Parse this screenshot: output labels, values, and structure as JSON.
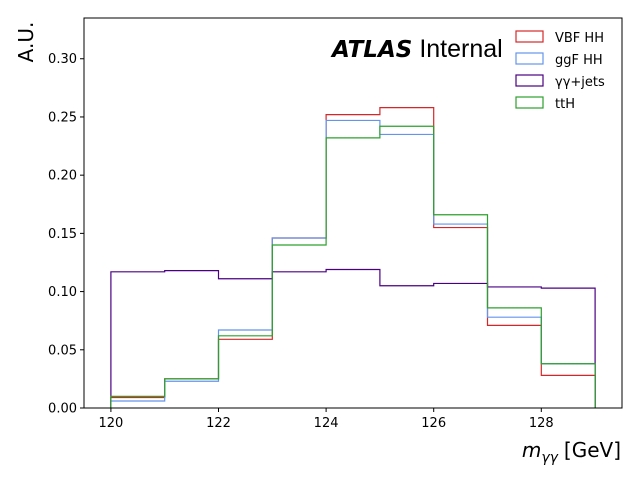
{
  "chart_data": {
    "type": "histogram-step",
    "bin_edges": [
      120,
      121,
      122,
      123,
      124,
      125,
      126,
      127,
      128,
      129
    ],
    "series": [
      {
        "name": "VBF HH",
        "color": "#d62728",
        "values": [
          0.009,
          0.025,
          0.059,
          0.146,
          0.252,
          0.258,
          0.155,
          0.071,
          0.028
        ]
      },
      {
        "name": "ggF HH",
        "color": "#6495ed",
        "values": [
          0.006,
          0.023,
          0.067,
          0.146,
          0.247,
          0.235,
          0.158,
          0.078,
          0.038
        ]
      },
      {
        "name": "γγ+jets",
        "color": "#4b0082",
        "values": [
          0.117,
          0.118,
          0.111,
          0.117,
          0.119,
          0.105,
          0.107,
          0.104,
          0.103
        ]
      },
      {
        "name": "ttH",
        "color": "#2ca02c",
        "values": [
          0.01,
          0.025,
          0.062,
          0.14,
          0.232,
          0.242,
          0.166,
          0.086,
          0.038
        ]
      }
    ],
    "xlim": [
      119.5,
      129.5
    ],
    "ylim": [
      0,
      0.335
    ],
    "xticks": [
      "120",
      "122",
      "124",
      "126",
      "128"
    ],
    "yticks": [
      "0.00",
      "0.05",
      "0.10",
      "0.15",
      "0.20",
      "0.25",
      "0.30"
    ],
    "xlabel_main": "m",
    "xlabel_sub": "γγ",
    "xlabel_unit": "[GeV]",
    "ylabel": "A.U.",
    "atlas_label": "ATLAS",
    "atlas_status": "Internal",
    "legend_position": "top-right",
    "grid": false
  }
}
